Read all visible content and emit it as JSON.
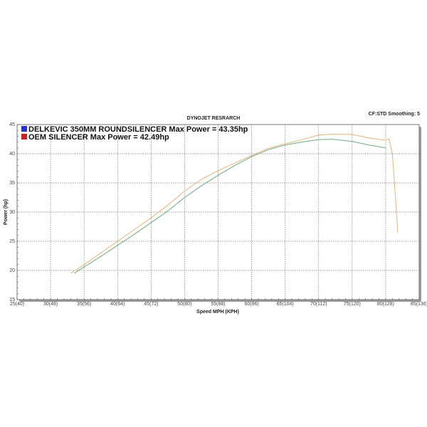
{
  "chart_data": {
    "type": "line",
    "title": "DYNOJET RESRARCH",
    "subtitle": "CF:STD Smoothing: 5",
    "xlabel": "Speed MPH (KPH)",
    "ylabel": "Power (hp)",
    "xlim": [
      25,
      85
    ],
    "ylim": [
      15,
      45
    ],
    "grid": true,
    "legend_position": "top-left",
    "x_ticks": [
      25,
      30,
      35,
      40,
      45,
      50,
      55,
      60,
      65,
      70,
      75,
      80,
      85
    ],
    "x_tick_labels": [
      "25(40)",
      "30(48)",
      "35(56)",
      "40(64)",
      "45(72)",
      "50(80)",
      "55(88)",
      "60(96)",
      "65(104)",
      "70(112)",
      "75(120)",
      "80(128)",
      "85(136)"
    ],
    "y_ticks": [
      15,
      20,
      25,
      30,
      35,
      40,
      45
    ],
    "y_tick_labels": [
      "15",
      "20",
      "25",
      "30",
      "35",
      "40",
      "45"
    ],
    "series": [
      {
        "name": "DELKEVIC 350MM ROUNDSILENCER  Max Power = 43.35hp",
        "legend_color": "#2233cc",
        "line_color": "#e3b57a",
        "x": [
          33,
          35,
          37.5,
          40,
          42.5,
          45,
          47.5,
          50,
          52.5,
          55,
          57.5,
          60,
          62.5,
          65,
          67.5,
          70,
          72,
          75,
          77.5,
          80,
          80.5,
          81,
          81.5,
          81.8
        ],
        "y": [
          19.5,
          21.0,
          23.0,
          25.0,
          27.0,
          29.0,
          31.2,
          33.6,
          35.6,
          37.1,
          38.4,
          39.7,
          40.9,
          41.7,
          42.4,
          43.2,
          43.35,
          43.3,
          42.7,
          42.3,
          42.6,
          40.0,
          32.0,
          26.5
        ]
      },
      {
        "name": "OEM SILENCER Max Power = 42.49hp",
        "legend_color": "#cc2222",
        "line_color": "#6fa884",
        "x": [
          33.5,
          35,
          37.5,
          40,
          42.5,
          45,
          47.5,
          50,
          52.5,
          55,
          57.5,
          60,
          62.5,
          65,
          67.5,
          70,
          72,
          75,
          77.5,
          80
        ],
        "y": [
          19.5,
          20.6,
          22.4,
          24.3,
          26.2,
          28.2,
          30.2,
          32.5,
          34.5,
          36.3,
          38.0,
          39.5,
          40.7,
          41.5,
          42.0,
          42.4,
          42.49,
          42.1,
          41.5,
          41.0
        ]
      }
    ]
  }
}
